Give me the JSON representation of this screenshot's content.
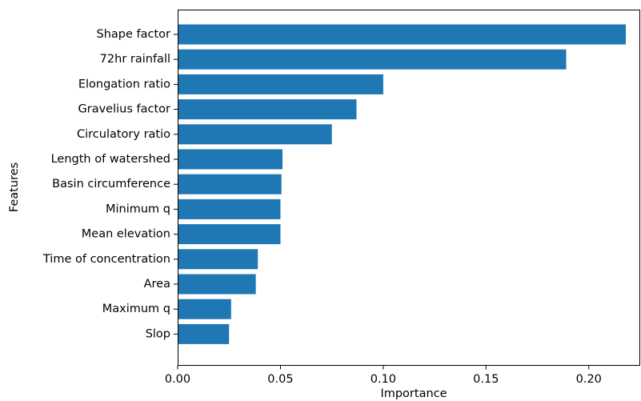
{
  "chart_data": {
    "type": "bar",
    "orientation": "horizontal",
    "xlabel": "Importance",
    "ylabel": "Features",
    "xlim": [
      0,
      0.225
    ],
    "xticks": [
      "0.00",
      "0.05",
      "0.10",
      "0.15",
      "0.20"
    ],
    "xtick_values": [
      0,
      0.05,
      0.1,
      0.15,
      0.2
    ],
    "grid": false,
    "bar_color": "#1f77b4",
    "categories": [
      "Shape factor",
      "72hr rainfall",
      "Elongation ratio",
      "Gravelius factor",
      "Circulatory ratio",
      "Length of watershed",
      "Basin circumference",
      "Minimum q",
      "Mean elevation",
      "Time of concentration",
      "Area",
      "Maximum q",
      "Slop"
    ],
    "values": [
      0.218,
      0.189,
      0.1,
      0.087,
      0.075,
      0.051,
      0.0505,
      0.05,
      0.05,
      0.039,
      0.038,
      0.026,
      0.025
    ]
  }
}
